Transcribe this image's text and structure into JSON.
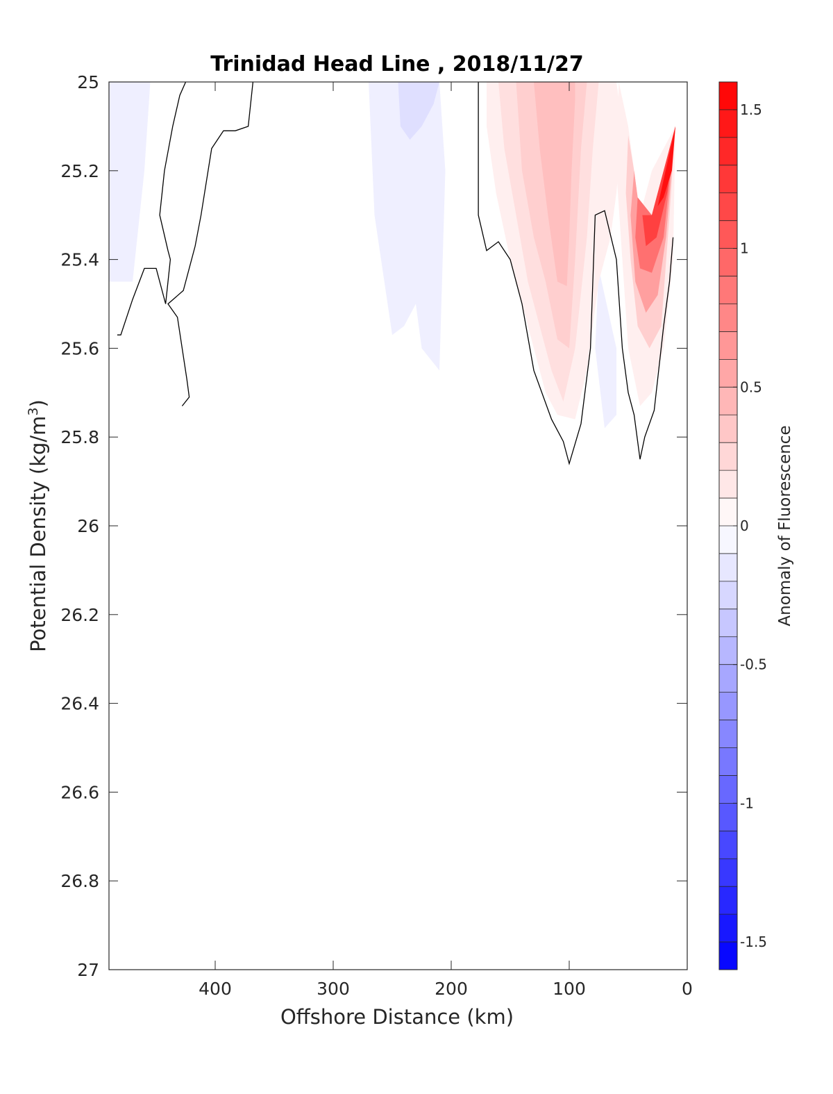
{
  "chart_data": {
    "type": "heatmap",
    "title": "Trinidad Head Line , 2018/11/27",
    "xlabel": "Offshore Distance (km)",
    "ylabel": "Potential Density (kg/m",
    "ylabel_sup": "3",
    "ylabel_close": ")",
    "xlim": [
      490,
      0
    ],
    "ylim": [
      25,
      27
    ],
    "xticks": [
      400,
      300,
      200,
      100,
      0
    ],
    "yticks": [
      25,
      25.2,
      25.4,
      25.6,
      25.8,
      26,
      26.2,
      26.4,
      26.6,
      26.8,
      27
    ],
    "colorbar": {
      "label": "Anomaly of Fluorescence",
      "clim": [
        -1.6,
        1.6
      ],
      "levels": 32,
      "ticks": [
        -1.5,
        -1,
        -0.5,
        0,
        0.5,
        1,
        1.5
      ],
      "low_color": "#0000ff",
      "mid_color": "#ffffff",
      "high_color": "#ff0000"
    },
    "filled_regions": [
      {
        "value": -0.1,
        "points": [
          [
            490,
            25
          ],
          [
            455,
            25
          ],
          [
            460,
            25.2
          ],
          [
            470,
            25.45
          ],
          [
            480,
            25.45
          ],
          [
            490,
            25.45
          ]
        ]
      },
      {
        "value": -0.1,
        "points": [
          [
            270,
            25
          ],
          [
            210,
            25
          ],
          [
            205,
            25.2
          ],
          [
            210,
            25.65
          ],
          [
            225,
            25.6
          ],
          [
            230,
            25.5
          ],
          [
            240,
            25.55
          ],
          [
            250,
            25.57
          ],
          [
            265,
            25.3
          ]
        ]
      },
      {
        "value": -0.2,
        "points": [
          [
            245,
            25
          ],
          [
            210,
            25
          ],
          [
            215,
            25.05
          ],
          [
            225,
            25.1
          ],
          [
            235,
            25.13
          ],
          [
            243,
            25.1
          ]
        ]
      },
      {
        "value": -0.1,
        "points": [
          [
            75,
            25.42
          ],
          [
            60,
            25.6
          ],
          [
            60,
            25.75
          ],
          [
            70,
            25.78
          ],
          [
            78,
            25.6
          ]
        ]
      },
      {
        "value": 0.1,
        "points": [
          [
            170,
            25
          ],
          [
            60,
            25
          ],
          [
            55,
            25.1
          ],
          [
            60,
            25.25
          ],
          [
            65,
            25.35
          ],
          [
            75,
            25.45
          ],
          [
            85,
            25.65
          ],
          [
            95,
            25.76
          ],
          [
            110,
            25.75
          ],
          [
            120,
            25.7
          ],
          [
            135,
            25.55
          ],
          [
            150,
            25.4
          ],
          [
            162,
            25.25
          ],
          [
            170,
            25.1
          ]
        ]
      },
      {
        "value": 0.2,
        "points": [
          [
            160,
            25
          ],
          [
            75,
            25
          ],
          [
            80,
            25.15
          ],
          [
            85,
            25.35
          ],
          [
            95,
            25.6
          ],
          [
            105,
            25.72
          ],
          [
            115,
            25.65
          ],
          [
            125,
            25.55
          ],
          [
            135,
            25.45
          ],
          [
            145,
            25.3
          ],
          [
            155,
            25.15
          ]
        ]
      },
      {
        "value": 0.3,
        "points": [
          [
            145,
            25
          ],
          [
            85,
            25
          ],
          [
            90,
            25.15
          ],
          [
            95,
            25.4
          ],
          [
            100,
            25.6
          ],
          [
            110,
            25.58
          ],
          [
            120,
            25.45
          ],
          [
            130,
            25.35
          ],
          [
            140,
            25.2
          ]
        ]
      },
      {
        "value": 0.4,
        "points": [
          [
            130,
            25
          ],
          [
            95,
            25
          ],
          [
            95,
            25.04
          ],
          [
            98,
            25.2
          ],
          [
            100,
            25.35
          ],
          [
            102,
            25.46
          ],
          [
            110,
            25.45
          ],
          [
            118,
            25.3
          ],
          [
            125,
            25.15
          ]
        ]
      },
      {
        "value": 0.1,
        "points": [
          [
            58,
            25
          ],
          [
            50,
            25.1
          ],
          [
            45,
            25.2
          ],
          [
            40,
            25.3
          ],
          [
            30,
            25.2
          ],
          [
            10,
            25.1
          ],
          [
            12,
            25.4
          ],
          [
            20,
            25.6
          ],
          [
            30,
            25.7
          ],
          [
            40,
            25.73
          ],
          [
            50,
            25.6
          ],
          [
            55,
            25.4
          ],
          [
            60,
            25.2
          ]
        ]
      },
      {
        "value": 0.3,
        "points": [
          [
            50,
            25.12
          ],
          [
            45,
            25.2
          ],
          [
            40,
            25.3
          ],
          [
            30,
            25.3
          ],
          [
            10,
            25.1
          ],
          [
            15,
            25.3
          ],
          [
            22,
            25.55
          ],
          [
            32,
            25.6
          ],
          [
            42,
            25.55
          ],
          [
            48,
            25.4
          ],
          [
            52,
            25.25
          ]
        ]
      },
      {
        "value": 0.6,
        "points": [
          [
            45,
            25.2
          ],
          [
            40,
            25.3
          ],
          [
            30,
            25.3
          ],
          [
            10,
            25.1
          ],
          [
            18,
            25.35
          ],
          [
            25,
            25.48
          ],
          [
            35,
            25.52
          ],
          [
            44,
            25.45
          ],
          [
            48,
            25.3
          ]
        ]
      },
      {
        "value": 0.9,
        "points": [
          [
            42,
            25.26
          ],
          [
            30,
            25.3
          ],
          [
            10,
            25.1
          ],
          [
            20,
            25.35
          ],
          [
            30,
            25.43
          ],
          [
            40,
            25.42
          ],
          [
            44,
            25.35
          ]
        ]
      },
      {
        "value": 1.2,
        "points": [
          [
            38,
            25.3
          ],
          [
            30,
            25.3
          ],
          [
            10,
            25.1
          ],
          [
            17,
            25.25
          ],
          [
            26,
            25.35
          ],
          [
            35,
            25.37
          ]
        ]
      },
      {
        "value": 1.5,
        "points": [
          [
            25,
            25.28
          ],
          [
            10,
            25.1
          ],
          [
            13,
            25.2
          ],
          [
            20,
            25.26
          ]
        ]
      }
    ],
    "zero_contours": [
      [
        [
          368,
          25
        ],
        [
          372,
          25.1
        ],
        [
          383,
          25.11
        ],
        [
          393,
          25.11
        ],
        [
          403,
          25.15
        ],
        [
          412,
          25.3
        ],
        [
          417,
          25.37
        ],
        [
          427,
          25.47
        ],
        [
          440,
          25.5
        ],
        [
          432,
          25.53
        ],
        [
          424,
          25.67
        ],
        [
          422,
          25.71
        ],
        [
          428,
          25.73
        ]
      ],
      [
        [
          425,
          25
        ],
        [
          430,
          25.03
        ],
        [
          436,
          25.1
        ],
        [
          443,
          25.2
        ],
        [
          447,
          25.3
        ],
        [
          440,
          25.38
        ],
        [
          438,
          25.4
        ],
        [
          442,
          25.5
        ],
        [
          450,
          25.42
        ],
        [
          460,
          25.42
        ],
        [
          470,
          25.49
        ],
        [
          480,
          25.57
        ],
        [
          483,
          25.57
        ]
      ],
      [
        [
          177,
          25
        ],
        [
          177,
          25.3
        ],
        [
          170,
          25.38
        ],
        [
          160,
          25.36
        ],
        [
          150,
          25.4
        ],
        [
          140,
          25.5
        ],
        [
          130,
          25.65
        ],
        [
          115,
          25.76
        ],
        [
          105,
          25.81
        ],
        [
          100,
          25.86
        ],
        [
          90,
          25.77
        ],
        [
          82,
          25.6
        ],
        [
          78,
          25.3
        ],
        [
          70,
          25.29
        ],
        [
          60,
          25.4
        ],
        [
          55,
          25.6
        ],
        [
          50,
          25.7
        ],
        [
          45,
          25.75
        ],
        [
          40,
          25.85
        ],
        [
          36,
          25.8
        ],
        [
          28,
          25.74
        ],
        [
          20,
          25.55
        ],
        [
          15,
          25.45
        ],
        [
          12,
          25.35
        ]
      ]
    ]
  }
}
